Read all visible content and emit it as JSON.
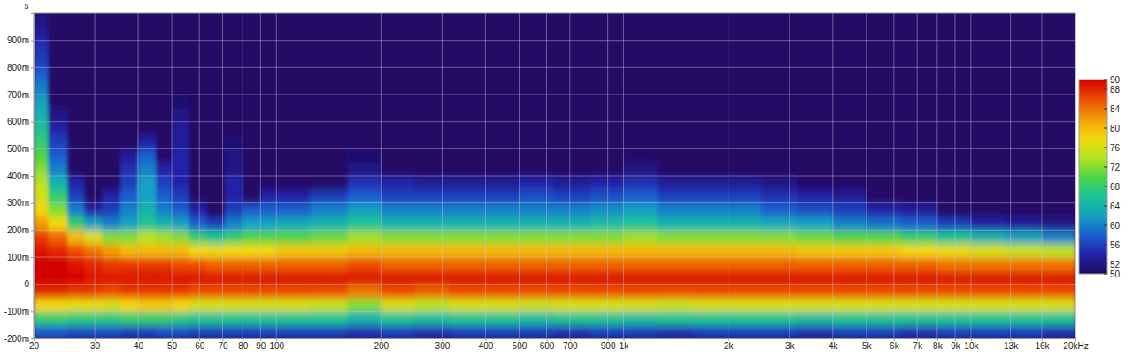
{
  "chart_data": {
    "type": "heatmap",
    "y_label": "s",
    "log": "x",
    "grid": true,
    "xlim": [
      20,
      20000
    ],
    "ylim": [
      -0.2,
      1.0
    ],
    "xticks": [
      20,
      30,
      40,
      50,
      60,
      70,
      80,
      90,
      100,
      200,
      300,
      400,
      500,
      600,
      700,
      900,
      {
        "value": 1000,
        "label": "1k"
      },
      {
        "value": 2000,
        "label": "2k"
      },
      {
        "value": 3000,
        "label": "3k"
      },
      {
        "value": 4000,
        "label": "4k"
      },
      {
        "value": 5000,
        "label": "5k"
      },
      {
        "value": 6000,
        "label": "6k"
      },
      {
        "value": 7000,
        "label": "7k"
      },
      {
        "value": 8000,
        "label": "8k"
      },
      {
        "value": 9000,
        "label": "9k"
      },
      {
        "value": 10000,
        "label": "10k"
      },
      {
        "value": 13000,
        "label": "13k"
      },
      {
        "value": 16000,
        "label": "16k"
      },
      {
        "value": 20000,
        "label": "20kHz"
      }
    ],
    "yticks": [
      {
        "value": -0.2,
        "label": "-200m"
      },
      {
        "value": -0.1,
        "label": "-100m"
      },
      0,
      {
        "value": 0.1,
        "label": "100m"
      },
      {
        "value": 0.2,
        "label": "200m"
      },
      {
        "value": 0.3,
        "label": "300m"
      },
      {
        "value": 0.4,
        "label": "400m"
      },
      {
        "value": 0.5,
        "label": "500m"
      },
      {
        "value": 0.6,
        "label": "600m"
      },
      {
        "value": 0.7,
        "label": "700m"
      },
      {
        "value": 0.8,
        "label": "800m"
      },
      {
        "value": 0.9,
        "label": "900m"
      }
    ],
    "x_bins": [
      20,
      22,
      25,
      28,
      31.5,
      35.5,
      40,
      45,
      50,
      56,
      63,
      71,
      80,
      90,
      100,
      125,
      160,
      200,
      250,
      315,
      400,
      500,
      630,
      800,
      1000,
      1250,
      1600,
      2000,
      2500,
      3150,
      4000,
      5000,
      6300,
      8000,
      10000,
      12500,
      16000,
      20000
    ],
    "y_bins": [
      -0.2,
      -0.15,
      -0.1,
      -0.05,
      0,
      0.05,
      0.1,
      0.15,
      0.2,
      0.25,
      0.3,
      0.35,
      0.4,
      0.45,
      0.5,
      0.55,
      0.6,
      0.65,
      0.7,
      0.75,
      0.8,
      0.85,
      0.9,
      0.95,
      1.0
    ],
    "values": [
      [
        58,
        58,
        57,
        57,
        57,
        56,
        56,
        57,
        57,
        56,
        56,
        56,
        56,
        56,
        56,
        56,
        55,
        56,
        55,
        56,
        56,
        56,
        55,
        56,
        56,
        55,
        56,
        56,
        56,
        55,
        56,
        56,
        55,
        56,
        56,
        56,
        55
      ],
      [
        68,
        68,
        67,
        67,
        67,
        68,
        68,
        68,
        67,
        66,
        66,
        66,
        66,
        66,
        66,
        66,
        64,
        66,
        65,
        66,
        66,
        65,
        66,
        66,
        65,
        66,
        66,
        66,
        66,
        65,
        66,
        66,
        66,
        66,
        66,
        66,
        66
      ],
      [
        78,
        78,
        77,
        77,
        76,
        78,
        79,
        79,
        78,
        76,
        76,
        76,
        76,
        76,
        76,
        75,
        72,
        76,
        74,
        76,
        76,
        75,
        76,
        76,
        76,
        75,
        76,
        76,
        76,
        76,
        76,
        76,
        76,
        76,
        76,
        76,
        76
      ],
      [
        88,
        88,
        87,
        87,
        86,
        87,
        87,
        87,
        87,
        86,
        86,
        86,
        86,
        86,
        86,
        86,
        84,
        86,
        85,
        86,
        86,
        86,
        86,
        86,
        86,
        86,
        86,
        86,
        86,
        86,
        86,
        86,
        86,
        86,
        86,
        86,
        86
      ],
      [
        90,
        90,
        90,
        89,
        89,
        89,
        89,
        89,
        89,
        89,
        89,
        89,
        89,
        89,
        89,
        89,
        89,
        89,
        89,
        89,
        89,
        89,
        89,
        89,
        89,
        89,
        89,
        89,
        89,
        89,
        89,
        89,
        89,
        89,
        89,
        89,
        89
      ],
      [
        90,
        90,
        89,
        88,
        87,
        87,
        87,
        87,
        86,
        86,
        85,
        85,
        85,
        85,
        85,
        85,
        86,
        85,
        85,
        85,
        85,
        85,
        85,
        85,
        85,
        85,
        85,
        85,
        85,
        85,
        85,
        85,
        85,
        84,
        84,
        84,
        84
      ],
      [
        89,
        88,
        86,
        84,
        82,
        80,
        80,
        80,
        80,
        78,
        77,
        78,
        78,
        78,
        79,
        79,
        80,
        80,
        80,
        80,
        80,
        80,
        80,
        80,
        80,
        80,
        80,
        80,
        80,
        79,
        79,
        79,
        78,
        77,
        76,
        75,
        74
      ],
      [
        87,
        85,
        80,
        76,
        72,
        72,
        74,
        73,
        72,
        68,
        66,
        68,
        70,
        70,
        70,
        71,
        73,
        72,
        72,
        72,
        72,
        72,
        72,
        72,
        73,
        72,
        72,
        72,
        72,
        71,
        70,
        70,
        68,
        66,
        64,
        62,
        60
      ],
      [
        82,
        78,
        68,
        62,
        60,
        62,
        66,
        64,
        62,
        58,
        56,
        60,
        62,
        62,
        63,
        64,
        66,
        64,
        64,
        64,
        64,
        64,
        64,
        65,
        66,
        64,
        64,
        64,
        63,
        62,
        60,
        59,
        58,
        56,
        54,
        53,
        52
      ],
      [
        78,
        72,
        60,
        54,
        56,
        60,
        64,
        60,
        58,
        54,
        null,
        56,
        58,
        58,
        58,
        60,
        62,
        60,
        60,
        60,
        60,
        60,
        60,
        61,
        62,
        60,
        60,
        60,
        58,
        57,
        56,
        54,
        53,
        null,
        null,
        null,
        null
      ],
      [
        76,
        68,
        56,
        null,
        54,
        58,
        62,
        58,
        56,
        null,
        null,
        54,
        null,
        54,
        54,
        56,
        58,
        56,
        56,
        56,
        56,
        57,
        56,
        57,
        58,
        56,
        56,
        56,
        55,
        54,
        53,
        null,
        null,
        null,
        null,
        null,
        null
      ],
      [
        74,
        64,
        54,
        null,
        null,
        56,
        62,
        56,
        54,
        null,
        null,
        54,
        null,
        null,
        null,
        null,
        55,
        54,
        53,
        53,
        53,
        54,
        53,
        54,
        55,
        53,
        53,
        53,
        52,
        null,
        null,
        null,
        null,
        null,
        null,
        null,
        null
      ],
      [
        72,
        60,
        null,
        null,
        null,
        55,
        60,
        54,
        54,
        null,
        null,
        52,
        null,
        null,
        null,
        null,
        52,
        null,
        null,
        null,
        null,
        null,
        null,
        null,
        52,
        null,
        null,
        null,
        null,
        null,
        null,
        null,
        null,
        null,
        null,
        null,
        null
      ],
      [
        70,
        58,
        null,
        null,
        null,
        53,
        58,
        null,
        54,
        null,
        null,
        52,
        null,
        null,
        null,
        null,
        51,
        null,
        null,
        null,
        null,
        null,
        null,
        null,
        null,
        null,
        null,
        null,
        null,
        null,
        null,
        null,
        null,
        null,
        null,
        null,
        null
      ],
      [
        68,
        56,
        null,
        null,
        null,
        null,
        54,
        null,
        53,
        null,
        null,
        51,
        null,
        null,
        null,
        null,
        null,
        null,
        null,
        null,
        null,
        null,
        null,
        null,
        null,
        null,
        null,
        null,
        null,
        null,
        null,
        null,
        null,
        null,
        null,
        null,
        null
      ],
      [
        66,
        54,
        null,
        null,
        null,
        null,
        null,
        null,
        53,
        null,
        null,
        null,
        null,
        null,
        null,
        null,
        null,
        null,
        null,
        null,
        null,
        null,
        null,
        null,
        null,
        null,
        null,
        null,
        null,
        null,
        null,
        null,
        null,
        null,
        null,
        null,
        null
      ],
      [
        64,
        52,
        null,
        null,
        null,
        null,
        null,
        null,
        52,
        null,
        null,
        null,
        null,
        null,
        null,
        null,
        null,
        null,
        null,
        null,
        null,
        null,
        null,
        null,
        null,
        null,
        null,
        null,
        null,
        null,
        null,
        null,
        null,
        null,
        null,
        null,
        null
      ],
      [
        62,
        null,
        null,
        null,
        null,
        null,
        null,
        null,
        51,
        null,
        null,
        null,
        null,
        null,
        null,
        null,
        null,
        null,
        null,
        null,
        null,
        null,
        null,
        null,
        null,
        null,
        null,
        null,
        null,
        null,
        null,
        null,
        null,
        null,
        null,
        null,
        null
      ],
      [
        60,
        null,
        null,
        null,
        null,
        null,
        null,
        null,
        null,
        null,
        null,
        null,
        null,
        null,
        null,
        null,
        null,
        null,
        null,
        null,
        null,
        null,
        null,
        null,
        null,
        null,
        null,
        null,
        null,
        null,
        null,
        null,
        null,
        null,
        null,
        null,
        null
      ],
      [
        58,
        null,
        null,
        null,
        null,
        null,
        null,
        null,
        null,
        null,
        null,
        null,
        null,
        null,
        null,
        null,
        null,
        null,
        null,
        null,
        null,
        null,
        null,
        null,
        null,
        null,
        null,
        null,
        null,
        null,
        null,
        null,
        null,
        null,
        null,
        null,
        null
      ],
      [
        56,
        null,
        null,
        null,
        null,
        null,
        null,
        null,
        null,
        null,
        null,
        null,
        null,
        null,
        null,
        null,
        null,
        null,
        null,
        null,
        null,
        null,
        null,
        null,
        null,
        null,
        null,
        null,
        null,
        null,
        null,
        null,
        null,
        null,
        null,
        null,
        null
      ],
      [
        55,
        null,
        null,
        null,
        null,
        null,
        null,
        null,
        null,
        null,
        null,
        null,
        null,
        null,
        null,
        null,
        null,
        null,
        null,
        null,
        null,
        null,
        null,
        null,
        null,
        null,
        null,
        null,
        null,
        null,
        null,
        null,
        null,
        null,
        null,
        null,
        null
      ],
      [
        53,
        null,
        null,
        null,
        null,
        null,
        null,
        null,
        null,
        null,
        null,
        null,
        null,
        null,
        null,
        null,
        null,
        null,
        null,
        null,
        null,
        null,
        null,
        null,
        null,
        null,
        null,
        null,
        null,
        null,
        null,
        null,
        null,
        null,
        null,
        null,
        null
      ],
      [
        52,
        null,
        null,
        null,
        null,
        null,
        null,
        null,
        null,
        null,
        null,
        null,
        null,
        null,
        null,
        null,
        null,
        null,
        null,
        null,
        null,
        null,
        null,
        null,
        null,
        null,
        null,
        null,
        null,
        null,
        null,
        null,
        null,
        null,
        null,
        null,
        null
      ]
    ],
    "colorbar": {
      "range": [
        50,
        90
      ],
      "ticks": [
        90,
        88,
        84,
        80,
        76,
        72,
        68,
        64,
        60,
        56,
        52,
        50
      ]
    }
  }
}
